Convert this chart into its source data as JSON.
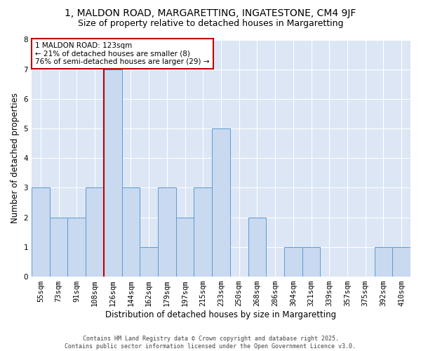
{
  "title_line1": "1, MALDON ROAD, MARGARETTING, INGATESTONE, CM4 9JF",
  "title_line2": "Size of property relative to detached houses in Margaretting",
  "xlabel": "Distribution of detached houses by size in Margaretting",
  "ylabel": "Number of detached properties",
  "footnote": "Contains HM Land Registry data © Crown copyright and database right 2025.\nContains public sector information licensed under the Open Government Licence v3.0.",
  "categories": [
    "55sqm",
    "73sqm",
    "91sqm",
    "108sqm",
    "126sqm",
    "144sqm",
    "162sqm",
    "179sqm",
    "197sqm",
    "215sqm",
    "233sqm",
    "250sqm",
    "268sqm",
    "286sqm",
    "304sqm",
    "321sqm",
    "339sqm",
    "357sqm",
    "375sqm",
    "392sqm",
    "410sqm"
  ],
  "values": [
    3,
    2,
    2,
    3,
    7,
    3,
    1,
    3,
    2,
    3,
    5,
    0,
    2,
    0,
    1,
    1,
    0,
    0,
    0,
    1,
    1
  ],
  "bar_color": "#c9d9f0",
  "bar_edge_color": "#5b9bd5",
  "vline_color": "#c00000",
  "annotation_text": "1 MALDON ROAD: 123sqm\n← 21% of detached houses are smaller (8)\n76% of semi-detached houses are larger (29) →",
  "annotation_box_color": "#c00000",
  "ylim": [
    0,
    8
  ],
  "yticks": [
    0,
    1,
    2,
    3,
    4,
    5,
    6,
    7,
    8
  ],
  "fig_bg_color": "#ffffff",
  "plot_bg_color": "#dce6f5",
  "grid_color": "#ffffff",
  "title_fontsize": 10,
  "subtitle_fontsize": 9,
  "axis_label_fontsize": 8.5,
  "tick_fontsize": 7.5,
  "annotation_fontsize": 7.5,
  "footnote_fontsize": 6.0
}
